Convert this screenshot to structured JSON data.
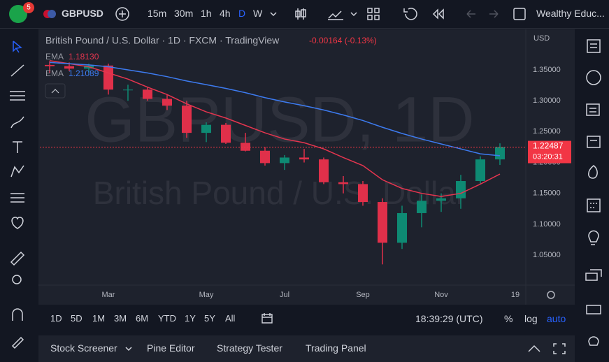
{
  "toolbar": {
    "badge": "5",
    "symbol": "GBPUSD",
    "intervals": [
      "15m",
      "30m",
      "1h",
      "4h",
      "D",
      "W"
    ],
    "active_interval": 4,
    "account": "Wealthy Educ..."
  },
  "chart_data": {
    "type": "candlestick",
    "title": "British Pound / U.S. Dollar · 1D · FXCM · TradingView",
    "change": "-0.00164 (-0.13%)",
    "watermark": "GBPUSD, 1D",
    "watermark_subtitle": "British Pound / U.S. Dollar",
    "currency": "USD",
    "categories": [
      null,
      null,
      null,
      "Mar",
      null,
      null,
      null,
      null,
      "May",
      null,
      null,
      null,
      "Jul",
      null,
      null,
      null,
      "Sep",
      null,
      null,
      null,
      "Nov",
      null,
      null,
      null
    ],
    "x_end_label": "19",
    "candles": {
      "up_color": "#0e8a73",
      "down_color": "#e0304a",
      "open": [
        1.358,
        1.356,
        1.352,
        1.357,
        1.318,
        1.318,
        1.303,
        1.292,
        1.248,
        1.261,
        1.232,
        1.219,
        1.199,
        1.208,
        1.205,
        1.168,
        1.165,
        1.136,
        1.07,
        1.118,
        1.138,
        1.142,
        1.17,
        1.205
      ],
      "high": [
        1.364,
        1.362,
        1.36,
        1.36,
        1.326,
        1.322,
        1.31,
        1.3,
        1.265,
        1.264,
        1.248,
        1.225,
        1.212,
        1.222,
        1.208,
        1.178,
        1.17,
        1.142,
        1.13,
        1.148,
        1.15,
        1.18,
        1.21,
        1.231
      ],
      "low": [
        1.345,
        1.348,
        1.345,
        1.31,
        1.3,
        1.3,
        1.285,
        1.24,
        1.233,
        1.23,
        1.218,
        1.195,
        1.188,
        1.2,
        1.165,
        1.15,
        1.13,
        1.035,
        1.06,
        1.095,
        1.12,
        1.125,
        1.165,
        1.196
      ],
      "close": [
        1.356,
        1.352,
        1.357,
        1.318,
        1.318,
        1.303,
        1.292,
        1.248,
        1.261,
        1.232,
        1.219,
        1.199,
        1.208,
        1.205,
        1.168,
        1.165,
        1.136,
        1.07,
        1.118,
        1.138,
        1.142,
        1.17,
        1.205,
        1.225
      ]
    },
    "lines": [
      {
        "name": "EMA",
        "value_label": "1.18130",
        "color": "#e5354f",
        "values": [
          1.365,
          1.36,
          1.355,
          1.345,
          1.335,
          1.322,
          1.31,
          1.295,
          1.282,
          1.272,
          1.26,
          1.248,
          1.238,
          1.232,
          1.222,
          1.208,
          1.195,
          1.172,
          1.158,
          1.15,
          1.145,
          1.15,
          1.165,
          1.1813
        ]
      },
      {
        "name": "EMA",
        "value_label": "1.21089",
        "color": "#3d7bf0",
        "values": [
          1.362,
          1.36,
          1.358,
          1.355,
          1.35,
          1.345,
          1.339,
          1.332,
          1.326,
          1.32,
          1.313,
          1.305,
          1.298,
          1.292,
          1.285,
          1.277,
          1.268,
          1.257,
          1.247,
          1.238,
          1.23,
          1.222,
          1.214,
          1.2109
        ]
      }
    ],
    "last_price": {
      "value": 1.22487,
      "label": "1.22487"
    },
    "countdown": "03:20:31",
    "ylim": [
      1.0014,
      1.4156
    ],
    "yticks": [
      {
        "value": 1.05,
        "label": "1.05000"
      },
      {
        "value": 1.1,
        "label": "1.10000"
      },
      {
        "value": 1.15,
        "label": "1.15000"
      },
      {
        "value": 1.2,
        "label": "1.20000"
      },
      {
        "value": 1.25,
        "label": "1.25000"
      },
      {
        "value": 1.3,
        "label": "1.30000"
      },
      {
        "value": 1.35,
        "label": "1.35000"
      }
    ],
    "grid": false
  },
  "range_bar": {
    "ranges": [
      "1D",
      "5D",
      "1M",
      "3M",
      "6M",
      "YTD",
      "1Y",
      "5Y",
      "All"
    ],
    "clock": "18:39:29 (UTC)",
    "options": [
      "%",
      "log",
      "auto"
    ]
  },
  "panel": {
    "tabs": [
      "Stock Screener",
      "Pine Editor",
      "Strategy Tester",
      "Trading Panel"
    ]
  }
}
